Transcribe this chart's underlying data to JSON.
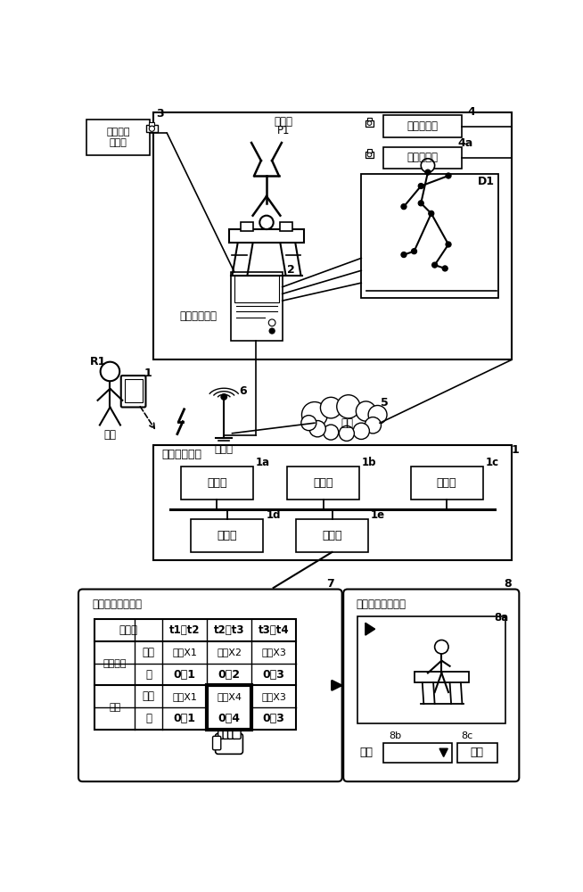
{
  "bg_color": "#ffffff",
  "lc": "#000000",
  "fig_w": 6.54,
  "fig_h": 10.0,
  "dpi": 100,
  "texts": {
    "camera_label": "视频拍摄\n照相机",
    "num3": "3",
    "sensor1": "激光传感器",
    "num4": "4",
    "sensor2": "激光传感器",
    "num4a": "4a",
    "info_device": "信息处理装置",
    "num2": "2",
    "participant": "参赛者",
    "P1": "P1",
    "D1": "D1",
    "judge_label": "裁判",
    "R1": "R1",
    "num1_tablet": "1",
    "network_label": "网络",
    "num5": "5",
    "access_label": "接入点",
    "num6": "6",
    "assist_device": "评分辅助装置",
    "num1_main": "1",
    "storage": "存储部",
    "num1a": "1a",
    "process": "处理部",
    "num1b": "1b",
    "comm": "通信部",
    "num1c": "1c",
    "input_unit": "输入部",
    "num1d": "1d",
    "display_unit": "显示部",
    "num1e": "1e",
    "screen7_title": "评分结果比较画面",
    "num7": "7",
    "screen8_title": "技巧视频播放画面",
    "num8": "8",
    "num8a": "8a",
    "skill_label": "技巧",
    "num8b": "8b",
    "confirm_btn": "确定",
    "num8c": "8c",
    "time_period": "时间段",
    "t1t2": "t1～t2",
    "t2t3": "t2～t3",
    "t3t4": "t3～t4",
    "sensing_tech": "传感技术",
    "skill_word": "技巧",
    "score_word": "分",
    "judge_row": "裁判",
    "sx1": "技巧X1",
    "sx2": "技巧X2",
    "sx3": "技巧X3",
    "sx4": "技巧X4",
    "s01": "0．1",
    "s02": "0．2",
    "s03": "0．3",
    "s04": "0．4"
  }
}
